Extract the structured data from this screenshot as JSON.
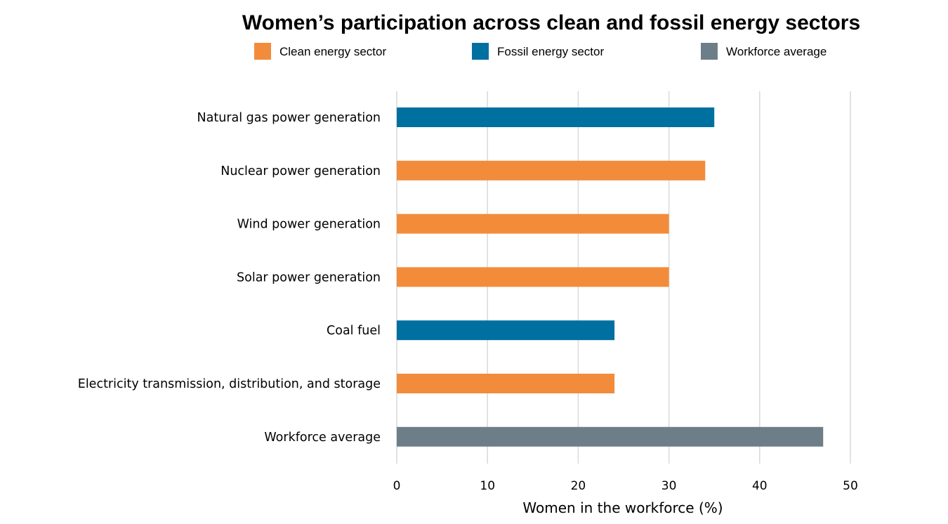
{
  "chart_data": {
    "type": "bar",
    "orientation": "horizontal",
    "title": "Women’s participation across clean and fossil energy sectors",
    "xlabel": "Women in the workforce (%)",
    "ylabel": "",
    "xlim": [
      0,
      50
    ],
    "xticks": [
      0,
      10,
      20,
      30,
      40,
      50
    ],
    "grid": true,
    "legend_position": "top",
    "legend": [
      {
        "label": "Clean energy sector",
        "color": "#F28C3B"
      },
      {
        "label": "Fossil energy sector",
        "color": "#0070A0"
      },
      {
        "label": "Workforce average",
        "color": "#6E7E88"
      }
    ],
    "categories": [
      "Natural gas power generation",
      "Nuclear power generation",
      "Wind power generation",
      "Solar power generation",
      "Coal fuel",
      "Electricity transmission, distribution, and storage",
      "Workforce average"
    ],
    "values": [
      35,
      34,
      30,
      30,
      24,
      24,
      47
    ],
    "groups": [
      "Fossil energy sector",
      "Clean energy sector",
      "Clean energy sector",
      "Clean energy sector",
      "Fossil energy sector",
      "Clean energy sector",
      "Workforce average"
    ]
  }
}
